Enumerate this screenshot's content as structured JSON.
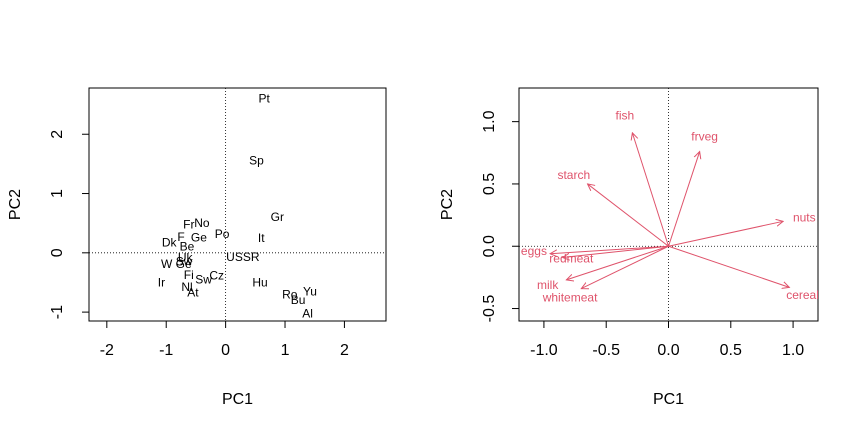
{
  "chart_data": [
    {
      "type": "scatter",
      "xlabel": "PC1",
      "ylabel": "PC2",
      "xlim": [
        -2.3,
        2.7
      ],
      "ylim": [
        -1.15,
        2.78
      ],
      "xticks": [
        -2,
        -1,
        0,
        1,
        2
      ],
      "yticks": [
        -1,
        0,
        1,
        2
      ],
      "grid": false,
      "points": [
        {
          "label": "Pt",
          "x": 0.65,
          "y": 2.6
        },
        {
          "label": "Sp",
          "x": 0.52,
          "y": 1.56
        },
        {
          "label": "Gr",
          "x": 0.87,
          "y": 0.6
        },
        {
          "label": "No",
          "x": -0.4,
          "y": 0.5
        },
        {
          "label": "Fr",
          "x": -0.62,
          "y": 0.48
        },
        {
          "label": "Po",
          "x": -0.06,
          "y": 0.32
        },
        {
          "label": "It",
          "x": 0.6,
          "y": 0.25
        },
        {
          "label": "F",
          "x": -0.75,
          "y": 0.27
        },
        {
          "label": "Ge",
          "x": -0.45,
          "y": 0.26
        },
        {
          "label": "Dk",
          "x": -0.95,
          "y": 0.17
        },
        {
          "label": "Be",
          "x": -0.65,
          "y": 0.11
        },
        {
          "label": "USSR",
          "x": 0.29,
          "y": -0.07
        },
        {
          "label": "Uk",
          "x": -0.68,
          "y": -0.08
        },
        {
          "label": "Sw",
          "x": -0.7,
          "y": -0.15
        },
        {
          "label": "W Ge",
          "x": -0.83,
          "y": -0.19
        },
        {
          "label": "Cz",
          "x": -0.15,
          "y": -0.38
        },
        {
          "label": "Fi",
          "x": -0.62,
          "y": -0.37
        },
        {
          "label": "Sw",
          "x": -0.37,
          "y": -0.45
        },
        {
          "label": "Hu",
          "x": 0.58,
          "y": -0.5
        },
        {
          "label": "Ir",
          "x": -1.08,
          "y": -0.5
        },
        {
          "label": "Nl",
          "x": -0.65,
          "y": -0.58
        },
        {
          "label": "At",
          "x": -0.55,
          "y": -0.67
        },
        {
          "label": "Ro",
          "x": 1.08,
          "y": -0.7
        },
        {
          "label": "Yu",
          "x": 1.42,
          "y": -0.65
        },
        {
          "label": "Bu",
          "x": 1.22,
          "y": -0.8
        },
        {
          "label": "Al",
          "x": 1.38,
          "y": -1.02
        }
      ]
    },
    {
      "type": "biplot-loadings",
      "xlabel": "PC1",
      "ylabel": "PC2",
      "xlim": [
        -1.2,
        1.2
      ],
      "ylim": [
        -0.6,
        1.27
      ],
      "xticks": [
        -1.0,
        -0.5,
        0.0,
        0.5,
        1.0
      ],
      "xticklabels": [
        "-1.0",
        "-0.5",
        "0.0",
        "0.5",
        "1.0"
      ],
      "yticks": [
        -0.5,
        0.0,
        0.5,
        1.0
      ],
      "yticklabels": [
        "-0.5",
        "0.0",
        "0.5",
        "1.0"
      ],
      "color": "#DF536B",
      "grid": false,
      "arrows": [
        {
          "label": "fish",
          "x": -0.29,
          "y": 0.91,
          "lx": -0.35,
          "ly": 1.05
        },
        {
          "label": "frveg",
          "x": 0.25,
          "y": 0.76,
          "lx": 0.29,
          "ly": 0.88
        },
        {
          "label": "starch",
          "x": -0.65,
          "y": 0.5,
          "lx": -0.76,
          "ly": 0.57
        },
        {
          "label": "nuts",
          "x": 0.92,
          "y": 0.2,
          "lx": 1.09,
          "ly": 0.23
        },
        {
          "label": "eggs",
          "x": -0.95,
          "y": -0.06,
          "lx": -1.08,
          "ly": -0.04
        },
        {
          "label": "redmeat",
          "x": -0.85,
          "y": -0.09,
          "lx": -0.78,
          "ly": -0.1
        },
        {
          "label": "milk",
          "x": -0.82,
          "y": -0.27,
          "lx": -0.97,
          "ly": -0.31
        },
        {
          "label": "whitemeat",
          "x": -0.7,
          "y": -0.34,
          "lx": -0.79,
          "ly": -0.41
        },
        {
          "label": "cereals",
          "x": 0.97,
          "y": -0.33,
          "lx": 1.1,
          "ly": -0.39
        }
      ]
    }
  ]
}
